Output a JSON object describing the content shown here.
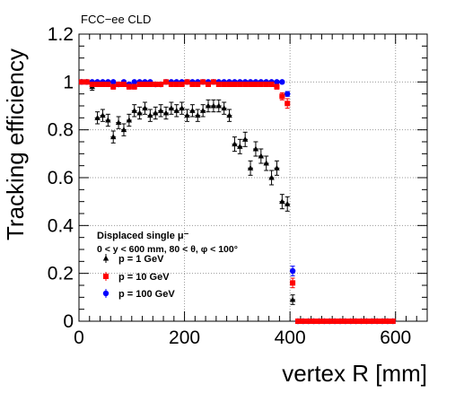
{
  "chart_data": {
    "type": "scatter",
    "annotation": "FCC−ee CLD",
    "xlabel": "vertex R [mm]",
    "ylabel": "Tracking efficiency",
    "xlim": [
      0,
      660
    ],
    "ylim": [
      0,
      1.2
    ],
    "xticks": [
      0,
      200,
      400,
      600
    ],
    "yticks": [
      0,
      0.2,
      0.4,
      0.6,
      0.8,
      1,
      1.2
    ],
    "ytick_labels": [
      "0",
      "0.2",
      "0.4",
      "0.6",
      "0.8",
      "1",
      "1.2"
    ],
    "grid": true,
    "legend_placement": "lower-left",
    "legend_header": [
      "Displaced single μ⁻",
      "0 < y < 600 mm, 80 < θ,  φ < 100°"
    ],
    "series": [
      {
        "name": "p = 1 GeV",
        "color": "#000000",
        "marker": "triangle",
        "x": [
          5,
          15,
          25,
          35,
          45,
          55,
          65,
          75,
          85,
          95,
          105,
          115,
          125,
          135,
          145,
          155,
          165,
          175,
          185,
          195,
          205,
          215,
          225,
          235,
          245,
          255,
          265,
          275,
          285,
          295,
          305,
          315,
          325,
          335,
          345,
          355,
          365,
          375,
          385,
          395,
          405,
          415,
          425,
          435,
          445,
          455,
          465,
          475,
          485,
          495,
          505,
          515,
          525,
          535,
          545,
          555,
          565,
          575,
          585,
          595
        ],
        "y": [
          1.0,
          1.0,
          0.98,
          0.85,
          0.86,
          0.84,
          0.77,
          0.83,
          0.8,
          0.84,
          0.88,
          0.87,
          0.89,
          0.86,
          0.87,
          0.88,
          0.87,
          0.89,
          0.88,
          0.89,
          0.86,
          0.88,
          0.86,
          0.88,
          0.9,
          0.9,
          0.9,
          0.89,
          0.86,
          0.74,
          0.73,
          0.76,
          0.64,
          0.72,
          0.69,
          0.66,
          0.6,
          0.64,
          0.5,
          0.49,
          0.09,
          0.0,
          0.0,
          0.0,
          0.0,
          0.0,
          0.0,
          0.0,
          0.0,
          0.0,
          0.0,
          0.0,
          0.0,
          0.0,
          0.0,
          0.0,
          0.0,
          0.0,
          0.0,
          0.0
        ],
        "yerr": [
          0.005,
          0.005,
          0.015,
          0.025,
          0.025,
          0.025,
          0.025,
          0.025,
          0.025,
          0.025,
          0.025,
          0.025,
          0.025,
          0.025,
          0.025,
          0.025,
          0.025,
          0.025,
          0.025,
          0.025,
          0.025,
          0.025,
          0.025,
          0.025,
          0.025,
          0.025,
          0.025,
          0.025,
          0.025,
          0.03,
          0.03,
          0.03,
          0.03,
          0.03,
          0.03,
          0.03,
          0.03,
          0.03,
          0.03,
          0.03,
          0.02,
          0.003,
          0.003,
          0.003,
          0.003,
          0.003,
          0.003,
          0.003,
          0.003,
          0.003,
          0.003,
          0.003,
          0.003,
          0.003,
          0.003,
          0.003,
          0.003,
          0.003,
          0.003,
          0.003
        ]
      },
      {
        "name": "p = 10 GeV",
        "color": "#ff0000",
        "marker": "square",
        "x": [
          5,
          15,
          25,
          35,
          45,
          55,
          65,
          75,
          85,
          95,
          105,
          115,
          125,
          135,
          145,
          155,
          165,
          175,
          185,
          195,
          205,
          215,
          225,
          235,
          245,
          255,
          265,
          275,
          285,
          295,
          305,
          315,
          325,
          335,
          345,
          355,
          365,
          375,
          385,
          395,
          405,
          415,
          425,
          435,
          445,
          455,
          465,
          475,
          485,
          495,
          505,
          515,
          525,
          535,
          545,
          555,
          565,
          575,
          585,
          595
        ],
        "y": [
          1.0,
          1.0,
          0.99,
          0.99,
          0.99,
          0.99,
          0.98,
          0.99,
          0.99,
          0.98,
          0.98,
          0.99,
          0.99,
          0.99,
          0.99,
          0.99,
          1.0,
          0.99,
          0.99,
          0.99,
          1.0,
          0.99,
          0.99,
          1.0,
          0.99,
          1.0,
          0.99,
          0.99,
          0.99,
          0.99,
          0.99,
          0.99,
          0.99,
          0.99,
          0.99,
          0.99,
          0.99,
          0.98,
          0.94,
          0.91,
          0.16,
          0.0,
          0.0,
          0.0,
          0.0,
          0.0,
          0.0,
          0.0,
          0.0,
          0.0,
          0.0,
          0.0,
          0.0,
          0.0,
          0.0,
          0.0,
          0.0,
          0.0,
          0.0,
          0.0
        ],
        "yerr": [
          0.005,
          0.005,
          0.008,
          0.008,
          0.008,
          0.008,
          0.01,
          0.008,
          0.008,
          0.01,
          0.01,
          0.008,
          0.008,
          0.008,
          0.008,
          0.008,
          0.005,
          0.008,
          0.008,
          0.008,
          0.005,
          0.008,
          0.008,
          0.005,
          0.008,
          0.005,
          0.008,
          0.008,
          0.008,
          0.008,
          0.008,
          0.008,
          0.008,
          0.008,
          0.008,
          0.008,
          0.008,
          0.01,
          0.015,
          0.02,
          0.02,
          0.002,
          0.002,
          0.002,
          0.002,
          0.002,
          0.002,
          0.002,
          0.002,
          0.002,
          0.002,
          0.002,
          0.002,
          0.002,
          0.002,
          0.002,
          0.002,
          0.002,
          0.002,
          0.002
        ]
      },
      {
        "name": "p = 100 GeV",
        "color": "#0000ff",
        "marker": "circle",
        "x": [
          5,
          15,
          25,
          35,
          45,
          55,
          65,
          75,
          85,
          95,
          105,
          115,
          125,
          135,
          145,
          155,
          165,
          175,
          185,
          195,
          205,
          215,
          225,
          235,
          245,
          255,
          265,
          275,
          285,
          295,
          305,
          315,
          325,
          335,
          345,
          355,
          365,
          375,
          385,
          395,
          405,
          415,
          425,
          435,
          445,
          455,
          465,
          475,
          485,
          495,
          505,
          515,
          525,
          535,
          545,
          555,
          565,
          575,
          585,
          595
        ],
        "y": [
          1.0,
          1.0,
          1.0,
          1.0,
          1.0,
          1.0,
          1.0,
          0.99,
          1.0,
          0.99,
          1.0,
          1.0,
          1.0,
          1.0,
          0.99,
          0.99,
          1.0,
          1.0,
          1.0,
          1.0,
          1.0,
          1.0,
          1.0,
          1.0,
          1.0,
          1.0,
          1.0,
          1.0,
          1.0,
          1.0,
          1.0,
          1.0,
          1.0,
          1.0,
          1.0,
          1.0,
          1.0,
          1.0,
          1.0,
          0.95,
          0.21,
          0.0,
          0.0,
          0.0,
          0.0,
          0.0,
          0.0,
          0.0,
          0.0,
          0.0,
          0.0,
          0.0,
          0.0,
          0.0,
          0.0,
          0.0,
          0.0,
          0.0,
          0.0,
          0.0
        ],
        "yerr": [
          0.004,
          0.004,
          0.004,
          0.004,
          0.004,
          0.004,
          0.004,
          0.006,
          0.004,
          0.006,
          0.004,
          0.004,
          0.004,
          0.004,
          0.006,
          0.006,
          0.004,
          0.004,
          0.004,
          0.004,
          0.004,
          0.004,
          0.004,
          0.004,
          0.004,
          0.004,
          0.004,
          0.004,
          0.004,
          0.004,
          0.004,
          0.004,
          0.004,
          0.004,
          0.004,
          0.004,
          0.004,
          0.004,
          0.004,
          0.01,
          0.02,
          0.002,
          0.002,
          0.002,
          0.002,
          0.002,
          0.002,
          0.002,
          0.002,
          0.002,
          0.002,
          0.002,
          0.002,
          0.002,
          0.002,
          0.002,
          0.002,
          0.002,
          0.002,
          0.002
        ]
      }
    ]
  }
}
